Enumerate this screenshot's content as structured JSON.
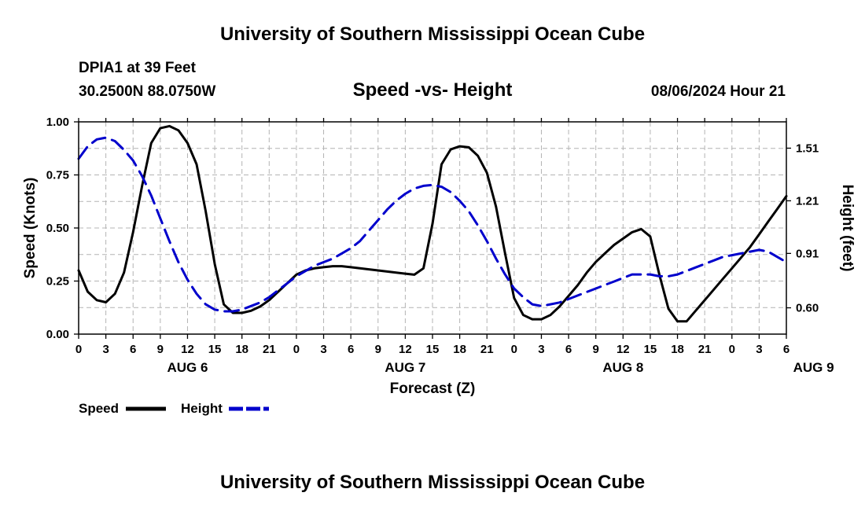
{
  "header": {
    "title": "University of Southern Mississippi Ocean Cube",
    "station": "DPIA1 at 39 Feet",
    "coords": "30.2500N  88.0750W",
    "subtitle": "Speed -vs- Height",
    "datetime": "08/06/2024 Hour 21"
  },
  "footer": {
    "title": "University of Southern Mississippi Ocean Cube"
  },
  "chart_data": {
    "type": "line",
    "title": "Speed -vs- Height",
    "xlabel": "Forecast (Z)",
    "ylabel_left": "Speed (Knots)",
    "ylabel_right": "Height (feet)",
    "x_ticks": [
      "0",
      "3",
      "6",
      "9",
      "12",
      "15",
      "18",
      "21",
      "0",
      "3",
      "6",
      "9",
      "12",
      "15",
      "18",
      "21",
      "0",
      "3",
      "6",
      "9",
      "12",
      "15",
      "18",
      "21",
      "0",
      "3",
      "6"
    ],
    "day_labels": [
      {
        "label": "AUG 6",
        "hour": 12
      },
      {
        "label": "AUG 7",
        "hour": 36
      },
      {
        "label": "AUG 8",
        "hour": 60
      },
      {
        "label": "AUG 9",
        "hour": 81
      }
    ],
    "xlim": [
      0,
      78
    ],
    "ylim_left": [
      0,
      1.0
    ],
    "ylim_right": [
      0.45,
      1.66
    ],
    "left_ticks": [
      "0.00",
      "0.25",
      "0.50",
      "0.75",
      "1.00"
    ],
    "right_ticks": [
      "0.60",
      "0.91",
      "1.21",
      "1.51"
    ],
    "legend": [
      {
        "label": "Speed",
        "color": "#000000",
        "style": "solid"
      },
      {
        "label": "Height",
        "color": "#0000cc",
        "style": "dashed"
      }
    ],
    "series": [
      {
        "name": "Speed",
        "axis": "left",
        "color": "#000000",
        "style": "solid",
        "x": [
          0,
          1,
          2,
          3,
          4,
          5,
          6,
          7,
          8,
          9,
          10,
          11,
          12,
          13,
          14,
          15,
          16,
          17,
          18,
          19,
          20,
          21,
          22,
          23,
          24,
          25,
          26,
          27,
          28,
          29,
          30,
          31,
          32,
          33,
          34,
          35,
          36,
          37,
          38,
          39,
          40,
          41,
          42,
          43,
          44,
          45,
          46,
          47,
          48,
          49,
          50,
          51,
          52,
          53,
          54,
          55,
          56,
          57,
          58,
          59,
          60,
          61,
          62,
          63,
          64,
          65,
          66,
          67,
          68,
          69,
          70,
          71,
          72,
          73,
          74,
          75,
          76,
          77,
          78
        ],
        "values": [
          0.3,
          0.2,
          0.16,
          0.15,
          0.19,
          0.29,
          0.48,
          0.7,
          0.9,
          0.97,
          0.98,
          0.96,
          0.9,
          0.8,
          0.58,
          0.33,
          0.14,
          0.1,
          0.1,
          0.11,
          0.13,
          0.16,
          0.2,
          0.24,
          0.28,
          0.3,
          0.31,
          0.315,
          0.32,
          0.32,
          0.315,
          0.31,
          0.305,
          0.3,
          0.295,
          0.29,
          0.285,
          0.28,
          0.31,
          0.52,
          0.8,
          0.87,
          0.885,
          0.88,
          0.84,
          0.76,
          0.6,
          0.38,
          0.17,
          0.09,
          0.07,
          0.07,
          0.09,
          0.13,
          0.18,
          0.23,
          0.29,
          0.34,
          0.38,
          0.42,
          0.45,
          0.48,
          0.495,
          0.46,
          0.28,
          0.12,
          0.06,
          0.06,
          0.11,
          0.16,
          0.21,
          0.26,
          0.31,
          0.36,
          0.41,
          0.47,
          0.53,
          0.59,
          0.65
        ]
      },
      {
        "name": "Height",
        "axis": "right",
        "color": "#0000cc",
        "style": "dashed",
        "x": [
          0,
          1,
          2,
          3,
          4,
          5,
          6,
          7,
          8,
          9,
          10,
          11,
          12,
          13,
          14,
          15,
          16,
          17,
          18,
          19,
          20,
          21,
          22,
          23,
          24,
          25,
          26,
          27,
          28,
          29,
          30,
          31,
          32,
          33,
          34,
          35,
          36,
          37,
          38,
          39,
          40,
          41,
          42,
          43,
          44,
          45,
          46,
          47,
          48,
          49,
          50,
          51,
          52,
          53,
          54,
          55,
          56,
          57,
          58,
          59,
          60,
          61,
          62,
          63,
          64,
          65,
          66,
          67,
          68,
          69,
          70,
          71,
          72,
          73,
          74,
          75,
          76,
          77,
          78
        ],
        "values": [
          1.45,
          1.52,
          1.56,
          1.57,
          1.55,
          1.5,
          1.44,
          1.35,
          1.24,
          1.11,
          0.98,
          0.86,
          0.76,
          0.68,
          0.62,
          0.59,
          0.58,
          0.58,
          0.59,
          0.61,
          0.63,
          0.66,
          0.7,
          0.74,
          0.78,
          0.81,
          0.84,
          0.86,
          0.88,
          0.91,
          0.94,
          0.98,
          1.04,
          1.1,
          1.16,
          1.21,
          1.25,
          1.28,
          1.295,
          1.3,
          1.29,
          1.26,
          1.21,
          1.15,
          1.07,
          0.98,
          0.88,
          0.79,
          0.71,
          0.66,
          0.62,
          0.61,
          0.62,
          0.63,
          0.65,
          0.67,
          0.69,
          0.71,
          0.73,
          0.75,
          0.77,
          0.79,
          0.79,
          0.79,
          0.78,
          0.78,
          0.79,
          0.81,
          0.83,
          0.85,
          0.87,
          0.89,
          0.9,
          0.91,
          0.92,
          0.93,
          0.92,
          0.89,
          0.86
        ]
      }
    ]
  }
}
